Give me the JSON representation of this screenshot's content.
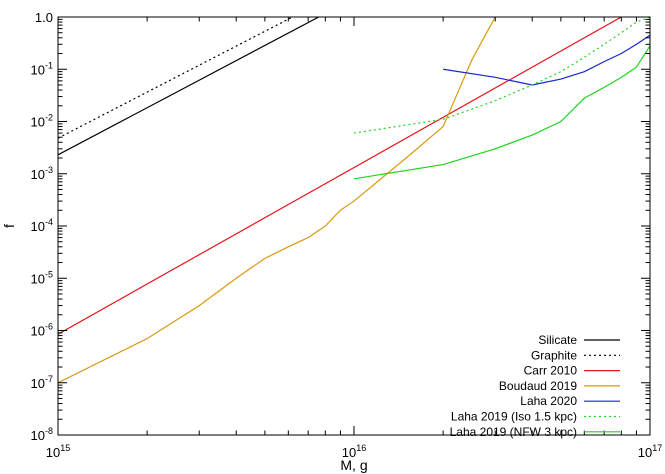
{
  "chart_data": {
    "type": "line",
    "xlabel": "M, g",
    "ylabel": "f",
    "xscale": "log",
    "yscale": "log",
    "xlim": [
      1000000000000000.0,
      1e+17
    ],
    "ylim": [
      1e-08,
      1
    ],
    "grid": false,
    "legend_position": "bottom-right",
    "x_ticks": [
      {
        "base": "10",
        "exp": "15",
        "value": 1000000000000000.0
      },
      {
        "base": "10",
        "exp": "16",
        "value": 1e+16
      },
      {
        "base": "10",
        "exp": "17",
        "value": 1e+17
      }
    ],
    "y_ticks": [
      {
        "base": "10",
        "exp": "-8",
        "value": 1e-08,
        "plain": ""
      },
      {
        "base": "10",
        "exp": "-7",
        "value": 1e-07,
        "plain": ""
      },
      {
        "base": "10",
        "exp": "-6",
        "value": 1e-06,
        "plain": ""
      },
      {
        "base": "10",
        "exp": "-5",
        "value": 1e-05,
        "plain": ""
      },
      {
        "base": "10",
        "exp": "-4",
        "value": 0.0001,
        "plain": ""
      },
      {
        "base": "10",
        "exp": "-3",
        "value": 0.001,
        "plain": ""
      },
      {
        "base": "10",
        "exp": "-2",
        "value": 0.01,
        "plain": ""
      },
      {
        "base": "10",
        "exp": "-1",
        "value": 0.1,
        "plain": ""
      },
      {
        "base": "",
        "exp": "",
        "value": 1,
        "plain": "1.0"
      }
    ],
    "series": [
      {
        "name": "Silicate",
        "color": "#000000",
        "dash": "solid",
        "x": [
          1000000000000000.0,
          7600000000000000.0
        ],
        "y": [
          0.0023,
          1.0
        ]
      },
      {
        "name": "Graphite",
        "color": "#000000",
        "dash": "dotted",
        "x": [
          1000000000000000.0,
          6200000000000000.0
        ],
        "y": [
          0.0048,
          1.0
        ]
      },
      {
        "name": "Carr 2010",
        "color": "#e8141b",
        "dash": "solid",
        "x": [
          1000000000000000.0,
          8e+16
        ],
        "y": [
          8.5e-07,
          1.0
        ]
      },
      {
        "name": "Boudaud 2019",
        "color": "#d99a0e",
        "dash": "solid",
        "x": [
          1000000000000000.0,
          2000000000000000.0,
          3000000000000000.0,
          4000000000000000.0,
          5000000000000000.0,
          6000000000000000.0,
          7000000000000000.0,
          8000000000000000.0,
          9000000000000000.0,
          1e+16,
          1.5e+16,
          2e+16,
          2.5e+16,
          3e+16
        ],
        "y": [
          1e-07,
          7e-07,
          3e-06,
          1e-05,
          2.4e-05,
          4e-05,
          6e-05,
          0.0001,
          0.0002,
          0.0003,
          0.002,
          0.008,
          0.15,
          1.0
        ]
      },
      {
        "name": "Laha 2020",
        "color": "#1428cc",
        "dash": "solid",
        "x": [
          2e+16,
          3e+16,
          4e+16,
          5e+16,
          6e+16,
          7e+16,
          8e+16,
          9e+16,
          1e+17
        ],
        "y": [
          0.1,
          0.07,
          0.05,
          0.065,
          0.09,
          0.14,
          0.2,
          0.3,
          0.45
        ]
      },
      {
        "name": "Laha 2019 (Iso 1.5 kpc)",
        "color": "#1fd41f",
        "dash": "dotted",
        "x": [
          1e+16,
          2e+16,
          3e+16,
          4e+16,
          5e+16,
          6e+16,
          7e+16,
          8e+16,
          9e+16,
          1e+17
        ],
        "y": [
          0.006,
          0.011,
          0.025,
          0.05,
          0.09,
          0.17,
          0.3,
          0.5,
          0.8,
          1.0
        ]
      },
      {
        "name": "Laha 2019 (NFW 3 kpc)",
        "color": "#1fd41f",
        "dash": "solid",
        "x": [
          1e+16,
          2e+16,
          3e+16,
          4e+16,
          5e+16,
          6e+16,
          7e+16,
          8e+16,
          9e+16,
          1e+17
        ],
        "y": [
          0.0008,
          0.0015,
          0.003,
          0.0055,
          0.01,
          0.028,
          0.045,
          0.07,
          0.11,
          0.28
        ]
      }
    ]
  }
}
